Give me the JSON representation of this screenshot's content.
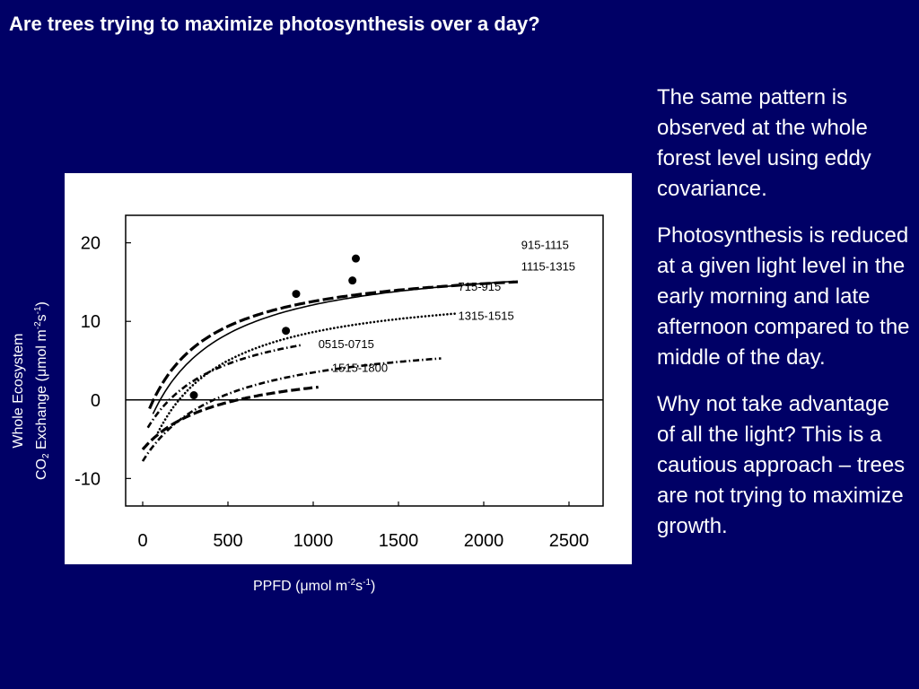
{
  "slide": {
    "title": "Are trees trying to maximize photosynthesis over a day?",
    "paragraphs": [
      "The same pattern is observed at the whole forest level using eddy covariance.",
      "Photosynthesis is reduced at a given light level in the early morning and late afternoon compared to the middle of the day.",
      "Why not take advantage of all the light? This is a cautious approach – trees are not trying to maximize growth."
    ]
  },
  "chart_data": {
    "type": "line",
    "xlabel": {
      "prefix": "PPFD (",
      "mu": "μ",
      "unit": "mol m",
      "exp1": "-2",
      "s": "s",
      "exp2": "-1",
      "suffix": ")"
    },
    "ylabel": {
      "line1": "Whole Ecosystem",
      "line2_prefix": "CO",
      "line2_sub": "2",
      "line2_mid": " Exchange (",
      "mu": "μ",
      "unit": "mol m",
      "exp1": "-2",
      "s": "s",
      "exp2": "-1",
      "suffix": ")"
    },
    "xlim": [
      -100,
      2700
    ],
    "ylim": [
      -13.5,
      23.5
    ],
    "xticks": [
      0,
      500,
      1000,
      1500,
      2000,
      2500
    ],
    "xtick_labels": [
      "0",
      "500",
      "1000",
      "1500",
      "2000",
      "2500"
    ],
    "yticks": [
      -10,
      0,
      10,
      20
    ],
    "ytick_labels": [
      "-10",
      "0",
      "10",
      "20"
    ],
    "zero_line": true,
    "grid": false,
    "series": [
      {
        "label": "915-1115",
        "style": "solid",
        "x_range": [
          60,
          2180
        ],
        "pmax": 23.6,
        "k": 380,
        "rd": 5,
        "label_at": [
          2220,
          19.2
        ],
        "marker": [
          1250,
          18
        ]
      },
      {
        "label": "1115-1315",
        "style": "dash-thick",
        "x_range": [
          40,
          2200
        ],
        "pmax": 21.2,
        "k": 330,
        "rd": 3.4,
        "label_at": [
          2220,
          16.5
        ],
        "marker": [
          1230,
          15.2
        ]
      },
      {
        "label": "715-915",
        "style": "dotted",
        "x_range": [
          90,
          1850
        ],
        "pmax": 23.8,
        "k": 350,
        "rd": 9,
        "label_at": [
          1850,
          13.9
        ],
        "marker": [
          900,
          13.5
        ]
      },
      {
        "label": "1315-1515",
        "style": "dashdot",
        "x_range": [
          0,
          1750
        ],
        "pmax": 16.6,
        "k": 470,
        "rd": 7.8,
        "label_at": [
          1850,
          10.2
        ],
        "marker": [
          840,
          8.8
        ]
      },
      {
        "label": "0515-0715",
        "style": "dashdot",
        "x_range": [
          30,
          930
        ],
        "pmax": 16.7,
        "k": 400,
        "rd": 4.7,
        "label_at": [
          1030,
          6.6
        ],
        "marker": [
          300,
          0.6
        ]
      },
      {
        "label": "1515-1800",
        "style": "dash",
        "x_range": [
          0,
          1030
        ],
        "pmax": 11.4,
        "k": 450,
        "rd": 6.3,
        "label_at": [
          1110,
          3.6
        ],
        "marker": null
      }
    ]
  }
}
